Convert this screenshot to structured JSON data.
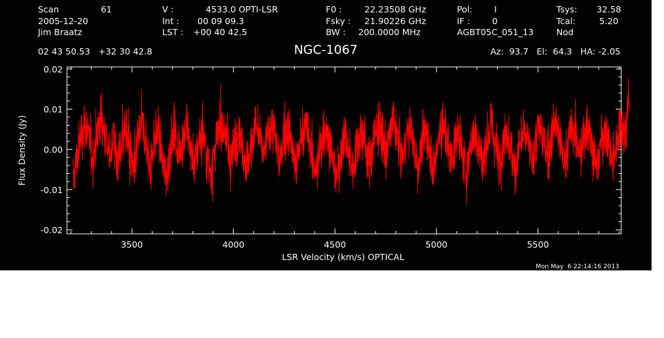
{
  "header": {
    "rows": [
      [
        "Scan",
        "61",
        "V   :",
        "4533.0 OPTI-LSR",
        "F0   :",
        "22.23508 GHz",
        "Pol:",
        "I",
        "Tsys:",
        "32.58"
      ],
      [
        "2005-12-20",
        "",
        "Int  :",
        "00 09 09.3",
        "Fsky :",
        "21.90226 GHz",
        "IF :",
        "0",
        "Tcal:",
        "5.20"
      ],
      [
        "Jim Braatz",
        "",
        "LST :",
        "+00 40 42.5",
        "BW  :",
        "200.0000 MHz",
        "AGBT05C_051_13",
        "",
        "Nod",
        ""
      ]
    ],
    "coords": "02 43 50.53   +32 30 42.8",
    "source": "NGC-1067",
    "pointing": "Az:  93.7   El:  64.3   HA: -2.05"
  },
  "timestamp": "Mon May  6 22:14:16 2013",
  "colors": {
    "background": "#000000",
    "axes": "#ffffff",
    "series": "#ff0000"
  },
  "chart_data": {
    "type": "line",
    "title": "NGC-1067",
    "xlabel": "LSR Velocity (km/s) OPTICAL",
    "ylabel": "Flux Density (Jy)",
    "xlim": [
      3180,
      5910
    ],
    "ylim": [
      -0.021,
      0.0205
    ],
    "xticks": [
      3500,
      4000,
      4500,
      5000,
      5500
    ],
    "xtick_labels": [
      "3500",
      "4000",
      "4500",
      "5000",
      "5500"
    ],
    "yticks": [
      -0.02,
      -0.01,
      0.0,
      0.01,
      0.02
    ],
    "ytick_labels": [
      "-0.02",
      "-0.01",
      "0.00",
      "0.01",
      "0.02"
    ],
    "grid": false,
    "series": [
      {
        "color": "#ff0000",
        "x_start": 3210,
        "x_step": 20,
        "values": [
          -0.008,
          -0.002,
          0.004,
          0.007,
          0.002,
          -0.003,
          0.005,
          0.008,
          0.003,
          -0.002,
          0.004,
          -0.004,
          0.002,
          0.006,
          -0.001,
          -0.006,
          0.003,
          0.007,
          0.001,
          -0.005,
          0.002,
          0.005,
          -0.003,
          -0.007,
          0.001,
          0.004,
          -0.002,
          0.003,
          0.006,
          0.0,
          -0.004,
          0.002,
          0.005,
          -0.002,
          -0.006,
          0.001,
          0.004,
          0.006,
          0.002,
          -0.003,
          0.003,
          0.005,
          -0.001,
          -0.004,
          0.002,
          0.006,
          0.003,
          -0.002,
          0.004,
          0.007,
          0.002,
          -0.003,
          0.004,
          0.005,
          0.0,
          -0.005,
          0.002,
          0.006,
          0.003,
          -0.002,
          -0.006,
          0.001,
          0.005,
          0.003,
          -0.003,
          -0.007,
          0.0,
          0.004,
          -0.002,
          -0.005,
          0.002,
          0.005,
          0.001,
          -0.004,
          0.002,
          0.006,
          0.003,
          -0.001,
          0.004,
          0.007,
          0.002,
          -0.003,
          0.003,
          0.006,
          0.001,
          -0.004,
          0.002,
          0.005,
          -0.001,
          -0.005,
          0.003,
          0.006,
          0.002,
          -0.003,
          0.001,
          0.005,
          -0.002,
          -0.006,
          0.002,
          0.004,
          0.0,
          -0.004,
          0.003,
          0.006,
          0.001,
          -0.003,
          0.002,
          0.005,
          -0.002,
          -0.005,
          0.001,
          0.004,
          0.002,
          -0.003,
          0.003,
          0.006,
          0.002,
          -0.002,
          0.004,
          0.007,
          0.001,
          -0.004,
          0.002,
          0.005,
          0.003,
          -0.002,
          0.004,
          0.006,
          0.0,
          -0.005,
          0.002,
          0.005,
          0.001,
          -0.004,
          0.003,
          0.007,
          0.004,
          0.013
        ]
      }
    ]
  }
}
